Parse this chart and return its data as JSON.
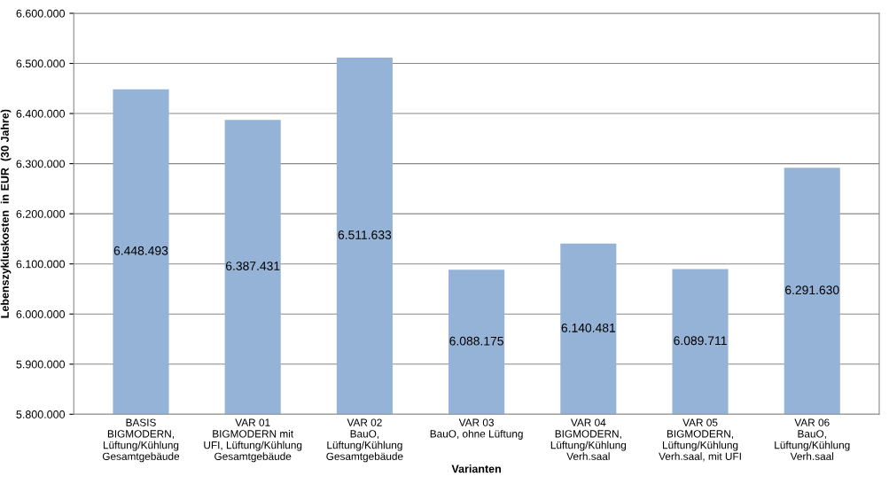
{
  "chart_data": {
    "type": "bar",
    "categories": [
      "BASIS\nBIGMODERN,\nLüftung/Kühlung\nGesamtgebäude",
      "VAR 01\nBIGMODERN mit\nUFI, Lüftung/Kühlung\nGesamtgebäude",
      "VAR 02\nBauO,\nLüftung/Kühlung\nGesamtgebäude",
      "VAR 03\nBauO, ohne Lüftung",
      "VAR 04\nBIGMODERN,\nLüftung/Kühlung\nVerh.saal",
      "VAR 05\nBIGMODERN,\nLüftung/Kühlung\nVerh.saal, mit UFI",
      "VAR 06\nBauO,\nLüftung/Kühlung\nVerh.saal"
    ],
    "values": [
      6448493,
      6387431,
      6511633,
      6088175,
      6140481,
      6089711,
      6291630
    ],
    "value_labels": [
      "6.448.493",
      "6.387.431",
      "6.511.633",
      "6.088.175",
      "6.140.481",
      "6.089.711",
      "6.291.630"
    ],
    "color": "#95b3d7",
    "xlabel": "Varianten",
    "ylabel": "Lebenszykluskosten  in EUR  (30 Jahre)",
    "ylim": [
      5800000,
      6600000
    ],
    "yticks": [
      {
        "value": 5800000,
        "label": "5.800.000"
      },
      {
        "value": 5900000,
        "label": "5.900.000"
      },
      {
        "value": 6000000,
        "label": "6.000.000"
      },
      {
        "value": 6100000,
        "label": "6.100.000"
      },
      {
        "value": 6200000,
        "label": "6.200.000"
      },
      {
        "value": 6300000,
        "label": "6.300.000"
      },
      {
        "value": 6400000,
        "label": "6.400.000"
      },
      {
        "value": 6500000,
        "label": "6.500.000"
      },
      {
        "value": 6600000,
        "label": "6.600.000"
      }
    ],
    "grid": "y",
    "legend": false
  }
}
